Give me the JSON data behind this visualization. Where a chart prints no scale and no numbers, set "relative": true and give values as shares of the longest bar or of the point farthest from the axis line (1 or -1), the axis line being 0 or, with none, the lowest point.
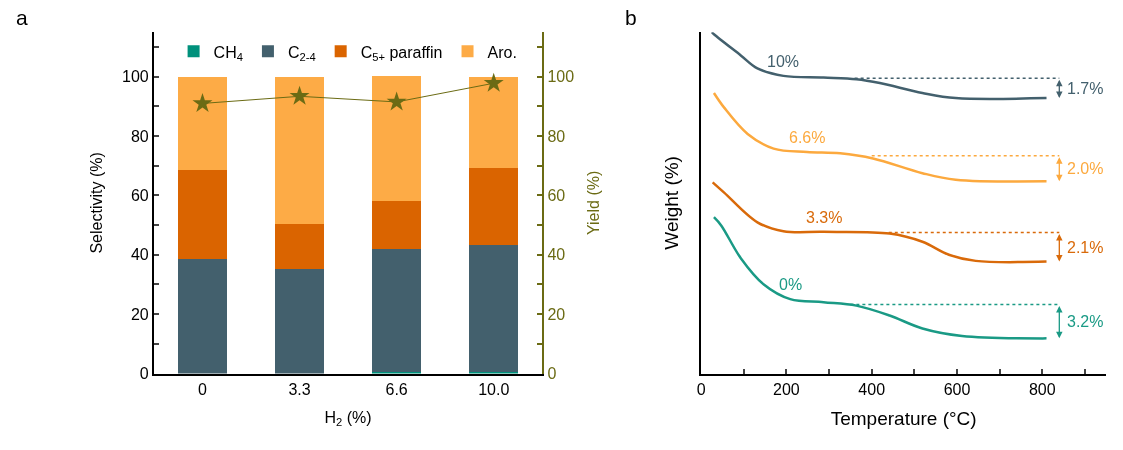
{
  "chart_data": [
    {
      "type": "bar",
      "title": "a",
      "xlabel": "H$_{2}$ (%)",
      "ylabel": "Selectivity (%)",
      "y2label": "Yield (%)",
      "stacked": true,
      "legend": "top",
      "categories": [
        "0",
        "3.3",
        "6.6",
        "10.0"
      ],
      "ylim": [
        0,
        115
      ],
      "yticks": [
        0,
        {
          "value": 10,
          "label": null
        },
        20,
        {
          "value": 30,
          "label": null
        },
        40,
        {
          "value": 50,
          "label": null
        },
        60,
        {
          "value": 70,
          "label": null
        },
        80,
        {
          "value": 90,
          "label": null
        },
        100,
        {
          "value": 110,
          "label": null
        }
      ],
      "y2lim": [
        0,
        115
      ],
      "y2ticks": [
        0,
        {
          "value": 10,
          "label": null
        },
        20,
        {
          "value": 30,
          "label": null
        },
        40,
        {
          "value": 50,
          "label": null
        },
        60,
        {
          "value": 70,
          "label": null
        },
        80,
        {
          "value": 90,
          "label": null
        },
        100,
        {
          "value": 110,
          "label": null
        }
      ],
      "series": [
        {
          "name": "CH$_{4}$",
          "color": "#00917c",
          "values": [
            0,
            0,
            0.6,
            0.5
          ]
        },
        {
          "name": "C$_{2-4}$",
          "color": "#43606d",
          "values": [
            38.5,
            35.3,
            41.2,
            42.7
          ]
        },
        {
          "name": "C$_{5+}$ paraffin",
          "color": "#da6400",
          "values": [
            30.2,
            15.2,
            16.3,
            26.1
          ]
        },
        {
          "name": "Aro.",
          "color": "#fdab46",
          "values": [
            31.3,
            49.5,
            42.2,
            30.7
          ]
        },
        {
          "type": "line",
          "axis": "y2",
          "marker": "star",
          "color": "#6b6b14",
          "x": [
            "0",
            "3.3",
            "6.6",
            "10.0"
          ],
          "values": [
            91,
            93.4,
            91.5,
            97.8
          ]
        }
      ]
    },
    {
      "type": "line",
      "title": "b",
      "xlabel": "Temperature (°C)",
      "ylabel": "Weight (%)",
      "relative": true,
      "legend": false,
      "tick_labels": "x",
      "xlim": [
        0,
        950
      ],
      "xticks": [
        0,
        {
          "value": 100,
          "label": null
        },
        200,
        {
          "value": 300,
          "label": null
        },
        400,
        {
          "value": 500,
          "label": null
        },
        600,
        {
          "value": 700,
          "label": null
        },
        800,
        {
          "value": 900,
          "label": null
        }
      ],
      "series": [
        {
          "name": "10%",
          "color": "#43606d",
          "x": [
            25,
            30,
            93,
            132,
            193,
            287,
            364,
            419,
            519,
            597,
            810
          ],
          "values": [
            1.0,
            0.994,
            0.932,
            0.894,
            0.872,
            0.867,
            0.862,
            0.851,
            0.822,
            0.807,
            0.807
          ]
        },
        {
          "color": "#43606d",
          "line_style": "dotted",
          "x": [
            360,
            840
          ],
          "values": [
            0.865,
            0.865
          ]
        },
        {
          "name": "6.6%",
          "color": "#fca93e",
          "x": [
            30,
            54,
            109,
            170,
            248,
            326,
            403,
            519,
            597,
            810
          ],
          "values": [
            0.822,
            0.779,
            0.702,
            0.659,
            0.649,
            0.645,
            0.63,
            0.587,
            0.568,
            0.563
          ]
        },
        {
          "color": "#fca93e",
          "line_style": "dotted",
          "x": [
            400,
            840
          ],
          "values": [
            0.638,
            0.638
          ]
        },
        {
          "name": "3.3%",
          "color": "#d96a0a",
          "x": [
            27,
            54,
            132,
            193,
            287,
            442,
            519,
            581,
            644,
            810
          ],
          "values": [
            0.56,
            0.53,
            0.443,
            0.417,
            0.415,
            0.41,
            0.386,
            0.348,
            0.33,
            0.328
          ]
        },
        {
          "color": "#d96a0a",
          "line_style": "dotted",
          "x": [
            440,
            840
          ],
          "values": [
            0.413,
            0.413
          ]
        },
        {
          "name": "0%",
          "color": "#1a9a85",
          "x": [
            30,
            47,
            93,
            147,
            209,
            287,
            364,
            442,
            519,
            612,
            810
          ],
          "values": [
            0.458,
            0.434,
            0.338,
            0.261,
            0.218,
            0.209,
            0.199,
            0.17,
            0.132,
            0.11,
            0.103
          ]
        },
        {
          "color": "#1a9a85",
          "line_style": "dotted",
          "x": [
            350,
            840
          ],
          "values": [
            0.202,
            0.202
          ]
        }
      ],
      "annotations": [
        "1.7%",
        "2.0%",
        "2.1%",
        "3.2%"
      ]
    }
  ]
}
